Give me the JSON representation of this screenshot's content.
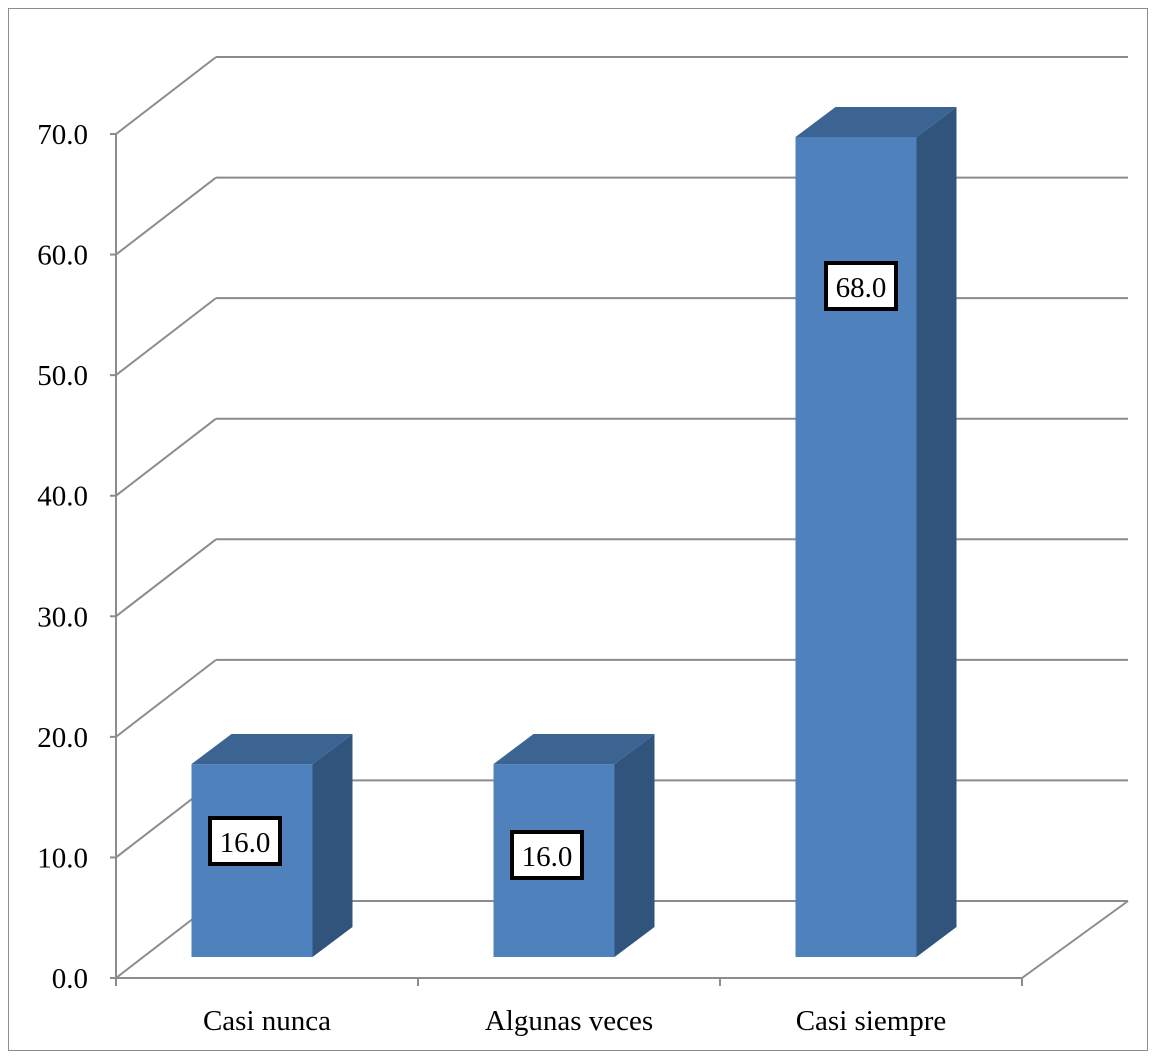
{
  "chart_data": {
    "type": "bar",
    "title": "",
    "xlabel": "",
    "ylabel": "",
    "categories": [
      "Casi nunca",
      "Algunas veces",
      "Casi siempre"
    ],
    "values": [
      16.0,
      16.0,
      68.0
    ],
    "data_labels": [
      "16.0",
      "16.0",
      "68.0"
    ],
    "ylim": [
      0,
      70
    ],
    "yticks": [
      0,
      10,
      20,
      30,
      40,
      50,
      60,
      70
    ],
    "ytick_labels": [
      "0.0",
      "10.0",
      "20.0",
      "30.0",
      "40.0",
      "50.0",
      "60.0",
      "70.0"
    ],
    "grid": true,
    "legend": "none",
    "style": "3d-column",
    "colors": {
      "bar_front": "#4f81bd",
      "bar_top": "#3c6493",
      "bar_side": "#31547d",
      "grid": "#8c8c8c"
    }
  }
}
